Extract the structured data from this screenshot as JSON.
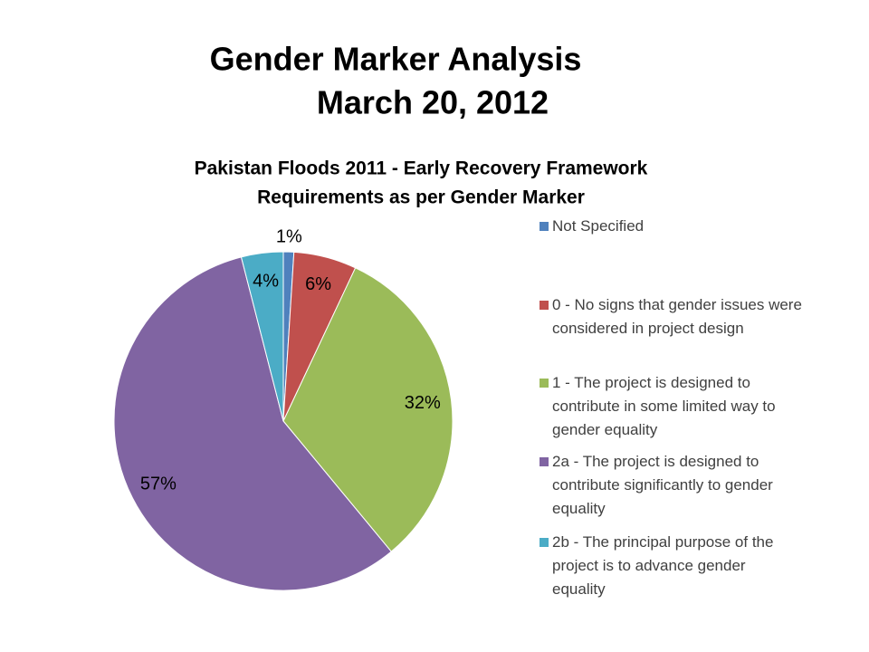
{
  "slide": {
    "title_lines": [
      "Gender Marker Analysis",
      "March 20, 2012"
    ]
  },
  "chart_data": {
    "type": "pie",
    "title": [
      "Pakistan Floods 2011 - Early Recovery Framework",
      "Requirements as per Gender Marker"
    ],
    "categories": [
      "Not Specified",
      "0 - No signs that gender issues were considered in project design",
      "1 - The project is designed to contribute in some limited way to gender equality",
      "2a - The project is designed to contribute significantly to gender equality",
      "2b - The principal purpose of the project is to advance gender equality"
    ],
    "values": [
      1,
      6,
      32,
      57,
      4
    ],
    "value_labels": [
      "1%",
      "6%",
      "32%",
      "57%",
      "4%"
    ],
    "colors": [
      "#4f81bd",
      "#c0504d",
      "#9bbb59",
      "#8064a2",
      "#4bacc6"
    ],
    "legend": "right"
  }
}
